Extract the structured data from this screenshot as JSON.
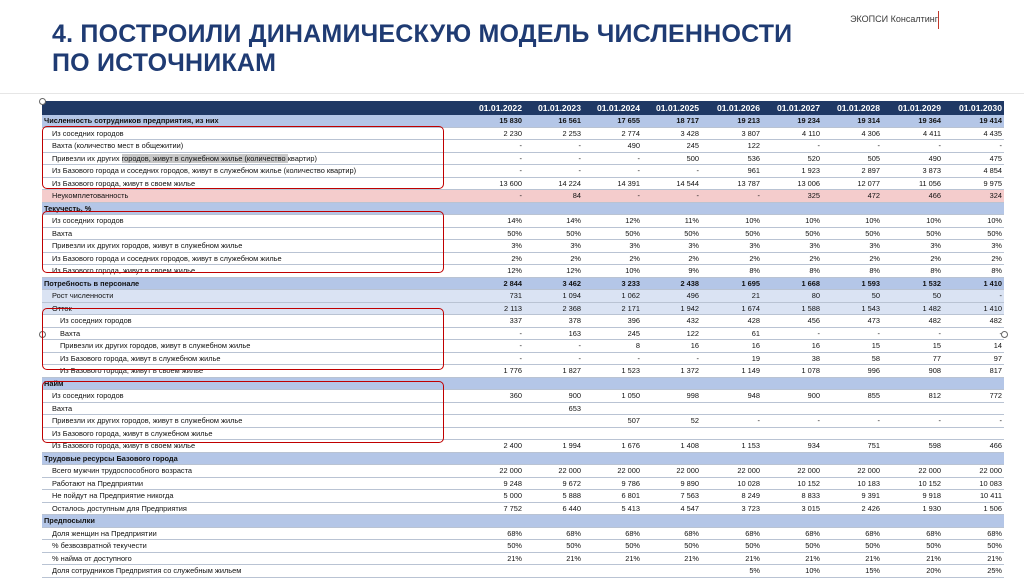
{
  "header": {
    "title_line1": "4. ПОСТРОИЛИ ДИНАМИЧЕСКУЮ МОДЕЛЬ ЧИСЛЕННОСТИ",
    "title_line2": "ПО ИСТОЧНИКАМ",
    "brand": "ЭКОПСИ Консалтинг",
    "brand_color": "#c0392b",
    "title_color": "#1f3b73"
  },
  "table": {
    "dates": [
      "01.01.2022",
      "01.01.2023",
      "01.01.2024",
      "01.01.2025",
      "01.01.2026",
      "01.01.2027",
      "01.01.2028",
      "01.01.2029",
      "01.01.2030"
    ],
    "rows": [
      {
        "label": "Численность сотрудников предприятия, из них",
        "style": "blue",
        "values": [
          "15 830",
          "16 561",
          "17 655",
          "18 717",
          "19 213",
          "19 234",
          "19 314",
          "19 364",
          "19 414"
        ]
      },
      {
        "label": "Из соседних городов",
        "style": "sub",
        "values": [
          "2 230",
          "2 253",
          "2 774",
          "3 428",
          "3 807",
          "4 110",
          "4 306",
          "4 411",
          "4 435"
        ]
      },
      {
        "label": "Вахта (количество мест в общежитии)",
        "style": "sub",
        "values": [
          "-",
          "-",
          "490",
          "245",
          "122",
          "-",
          "-",
          "-",
          "-"
        ]
      },
      {
        "label_a": "Привезли их других ",
        "label_hl": "городов, живут в служебном жилье (количество ",
        "label_b": "квартир)",
        "style": "sub-hl",
        "values": [
          "-",
          "-",
          "-",
          "500",
          "536",
          "520",
          "505",
          "490",
          "475"
        ]
      },
      {
        "label": "Из Базового города и соседних городов, живут в служебном жилье (количество квартир)",
        "style": "sub",
        "values": [
          "-",
          "-",
          "-",
          "-",
          "961",
          "1 923",
          "2 897",
          "3 873",
          "4 854"
        ]
      },
      {
        "label": "Из Базового города, живут в своем жилье",
        "style": "sub",
        "values": [
          "13 600",
          "14 224",
          "14 391",
          "14 544",
          "13 787",
          "13 006",
          "12 077",
          "11 056",
          "9 975"
        ]
      },
      {
        "label": "Неукомплетованность",
        "style": "pink",
        "values": [
          "-",
          "84",
          "-",
          "-",
          "-",
          "325",
          "472",
          "466",
          "324"
        ]
      },
      {
        "label": "Текучесть, %",
        "style": "sec",
        "values": [
          "",
          "",
          "",
          "",
          "",
          "",
          "",
          "",
          ""
        ]
      },
      {
        "label": "Из соседних городов",
        "style": "sub",
        "values": [
          "14%",
          "14%",
          "12%",
          "11%",
          "10%",
          "10%",
          "10%",
          "10%",
          "10%"
        ]
      },
      {
        "label": "Вахта",
        "style": "sub",
        "values": [
          "50%",
          "50%",
          "50%",
          "50%",
          "50%",
          "50%",
          "50%",
          "50%",
          "50%"
        ]
      },
      {
        "label": "Привезли их других городов, живут в служебном жилье",
        "style": "sub",
        "values": [
          "3%",
          "3%",
          "3%",
          "3%",
          "3%",
          "3%",
          "3%",
          "3%",
          "3%"
        ]
      },
      {
        "label": "Из Базового города и соседних городов, живут в служебном жилье",
        "style": "sub",
        "values": [
          "2%",
          "2%",
          "2%",
          "2%",
          "2%",
          "2%",
          "2%",
          "2%",
          "2%"
        ]
      },
      {
        "label": "Из Базового города, живут в своем жилье",
        "style": "sub",
        "values": [
          "12%",
          "12%",
          "10%",
          "9%",
          "8%",
          "8%",
          "8%",
          "8%",
          "8%"
        ]
      },
      {
        "label": "Потребность в персонале",
        "style": "blue",
        "values": [
          "2 844",
          "3 462",
          "3 233",
          "2 438",
          "1 695",
          "1 668",
          "1 593",
          "1 532",
          "1 410"
        ]
      },
      {
        "label": "Рост численности",
        "style": "light-sub",
        "values": [
          "731",
          "1 094",
          "1 062",
          "496",
          "21",
          "80",
          "50",
          "50",
          "-"
        ]
      },
      {
        "label": "Отток",
        "style": "light-sub",
        "values": [
          "2 113",
          "2 368",
          "2 171",
          "1 942",
          "1 674",
          "1 588",
          "1 543",
          "1 482",
          "1 410"
        ]
      },
      {
        "label": "Из соседних городов",
        "style": "sub2",
        "values": [
          "337",
          "378",
          "396",
          "432",
          "428",
          "456",
          "473",
          "482",
          "482"
        ]
      },
      {
        "label": "Вахта",
        "style": "sub2",
        "values": [
          "-",
          "163",
          "245",
          "122",
          "61",
          "-",
          "-",
          "-",
          "-"
        ]
      },
      {
        "label": "Привезли их других городов, живут в служебном жилье",
        "style": "sub2",
        "values": [
          "-",
          "-",
          "8",
          "16",
          "16",
          "16",
          "15",
          "15",
          "14"
        ]
      },
      {
        "label": "Из Базового города, живут в служебном жилье",
        "style": "sub2",
        "values": [
          "-",
          "-",
          "-",
          "-",
          "19",
          "38",
          "58",
          "77",
          "97"
        ]
      },
      {
        "label": "Из Базового города, живут в своем жилье",
        "style": "sub2",
        "values": [
          "1 776",
          "1 827",
          "1 523",
          "1 372",
          "1 149",
          "1 078",
          "996",
          "908",
          "817"
        ]
      },
      {
        "label": "Найм",
        "style": "sec",
        "values": [
          "",
          "",
          "",
          "",
          "",
          "",
          "",
          "",
          ""
        ]
      },
      {
        "label": "Из соседних городов",
        "style": "sub",
        "values": [
          "360",
          "900",
          "1 050",
          "998",
          "948",
          "900",
          "855",
          "812",
          "772"
        ]
      },
      {
        "label": "Вахта",
        "style": "sub",
        "values": [
          "",
          "653",
          "",
          "",
          "",
          "",
          "",
          "",
          ""
        ]
      },
      {
        "label": "Привезли их других городов, живут в служебном жилье",
        "style": "sub",
        "values": [
          "",
          "",
          "507",
          "52",
          "-",
          "-",
          "-",
          "-",
          "-"
        ]
      },
      {
        "label": "Из Базового города, живут в служебном жилье",
        "style": "sub",
        "values": [
          "",
          "",
          "",
          "",
          "",
          "",
          "",
          "",
          ""
        ]
      },
      {
        "label": "Из Базового города, живут в своем жилье",
        "style": "sub",
        "values": [
          "2 400",
          "1 994",
          "1 676",
          "1 408",
          "1 153",
          "934",
          "751",
          "598",
          "466"
        ]
      },
      {
        "label": "Трудовые ресурсы Базового города",
        "style": "sec",
        "values": [
          "",
          "",
          "",
          "",
          "",
          "",
          "",
          "",
          ""
        ]
      },
      {
        "label": "Всего мужчин трудоспособного возраста",
        "style": "sub",
        "values": [
          "22 000",
          "22 000",
          "22 000",
          "22 000",
          "22 000",
          "22 000",
          "22 000",
          "22 000",
          "22 000"
        ]
      },
      {
        "label": "Работают на Предприятии",
        "style": "sub",
        "values": [
          "9 248",
          "9 672",
          "9 786",
          "9 890",
          "10 028",
          "10 152",
          "10 183",
          "10 152",
          "10 083"
        ]
      },
      {
        "label": "Не пойдут на Предприятие никогда",
        "style": "sub",
        "values": [
          "5 000",
          "5 888",
          "6 801",
          "7 563",
          "8 249",
          "8 833",
          "9 391",
          "9 918",
          "10 411"
        ]
      },
      {
        "label": "Осталось доступным для Предприятия",
        "style": "sub",
        "values": [
          "7 752",
          "6 440",
          "5 413",
          "4 547",
          "3 723",
          "3 015",
          "2 426",
          "1 930",
          "1 506"
        ]
      },
      {
        "label": "Предпосылки",
        "style": "sec",
        "values": [
          "",
          "",
          "",
          "",
          "",
          "",
          "",
          "",
          ""
        ]
      },
      {
        "label": "Доля женщин на Предприятии",
        "style": "sub",
        "values": [
          "68%",
          "68%",
          "68%",
          "68%",
          "68%",
          "68%",
          "68%",
          "68%",
          "68%"
        ]
      },
      {
        "label": "% безвозвратной текучести",
        "style": "sub",
        "values": [
          "50%",
          "50%",
          "50%",
          "50%",
          "50%",
          "50%",
          "50%",
          "50%",
          "50%"
        ]
      },
      {
        "label": "% найма от доступного",
        "style": "sub",
        "values": [
          "21%",
          "21%",
          "21%",
          "21%",
          "21%",
          "21%",
          "21%",
          "21%",
          "21%"
        ]
      },
      {
        "label": "Доля сотрудников Предприятия со служебным жильем",
        "style": "sub",
        "values": [
          "",
          "",
          "",
          "",
          "5%",
          "10%",
          "15%",
          "20%",
          "25%"
        ]
      }
    ]
  }
}
